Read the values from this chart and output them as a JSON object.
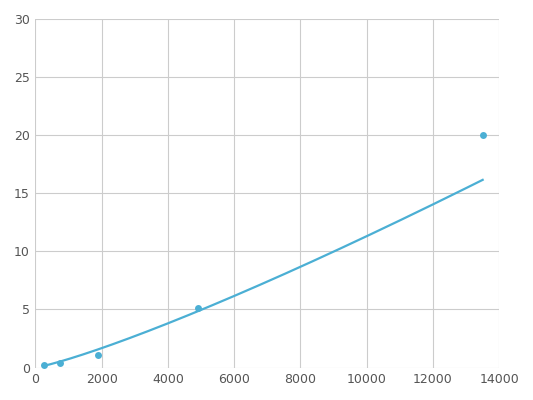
{
  "x": [
    250,
    750,
    1900,
    4900,
    13500
  ],
  "y": [
    0.2,
    0.4,
    1.1,
    5.1,
    20.0
  ],
  "line_color": "#4bafd4",
  "marker_color": "#4bafd4",
  "marker_size": 5,
  "xlim": [
    0,
    14000
  ],
  "ylim": [
    0,
    30
  ],
  "xticks": [
    0,
    2000,
    4000,
    6000,
    8000,
    10000,
    12000,
    14000
  ],
  "yticks": [
    0,
    5,
    10,
    15,
    20,
    25,
    30
  ],
  "grid_color": "#cccccc",
  "background_color": "#ffffff",
  "line_width": 1.6
}
